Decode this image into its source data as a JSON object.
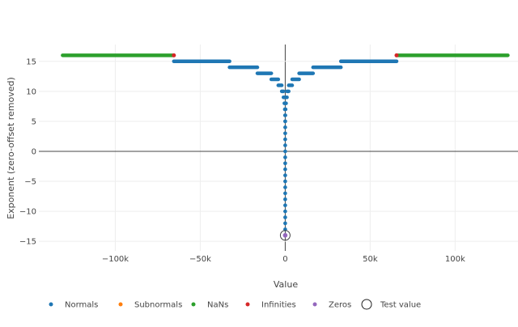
{
  "chart_data": {
    "type": "scatter",
    "title": "",
    "xlabel": "Value",
    "ylabel": "Exponent (zero-offset removed)",
    "xlim": [
      -145000,
      137000
    ],
    "ylim": [
      -16.6,
      17.8
    ],
    "grid": true,
    "legend_position": "bottom",
    "xticks": [
      {
        "v": -100000,
        "label": "−100k"
      },
      {
        "v": -50000,
        "label": "−50k"
      },
      {
        "v": 0,
        "label": "0"
      },
      {
        "v": 50000,
        "label": "50k"
      },
      {
        "v": 100000,
        "label": "100k"
      }
    ],
    "yticks": [
      {
        "v": 15,
        "label": "15"
      },
      {
        "v": 10,
        "label": "10"
      },
      {
        "v": 5,
        "label": "5"
      },
      {
        "v": 0,
        "label": "0"
      },
      {
        "v": -5,
        "label": "−5"
      },
      {
        "v": -10,
        "label": "−10"
      },
      {
        "v": -15,
        "label": "−15"
      }
    ],
    "series": [
      {
        "name": "Normals",
        "color": "#1f77b4",
        "exponent_range": [
          -14,
          15
        ],
        "description_rule": "for exponent e, values span ±[2^e, 2^(e+1))"
      },
      {
        "name": "Subnormals",
        "color": "#ff7f0e",
        "points": [
          [
            0,
            -14
          ]
        ]
      },
      {
        "name": "NaNs",
        "color": "#2ca02c",
        "segments": [
          [
            -131008,
            -65568,
            16
          ],
          [
            65568,
            131008,
            16
          ]
        ]
      },
      {
        "name": "Infinities",
        "color": "#d62728",
        "points": [
          [
            -65536,
            16
          ],
          [
            65536,
            16
          ]
        ]
      },
      {
        "name": "Zeros",
        "color": "#9467bd",
        "points": [
          [
            0,
            -14
          ]
        ]
      },
      {
        "name": "Test value",
        "color": "#000000",
        "marker": "open-circle",
        "points": [
          [
            0,
            -14
          ]
        ]
      }
    ]
  }
}
